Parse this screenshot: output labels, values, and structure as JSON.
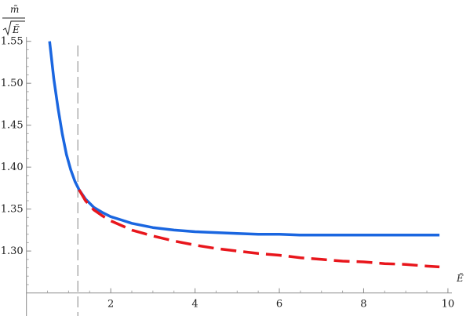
{
  "chart_data": {
    "type": "line",
    "xlim": [
      -0.05,
      10.3
    ],
    "ylim": [
      1.23,
      1.56
    ],
    "x_axis_at_y": 1.25,
    "y_axis_at_x": 0,
    "xticks": [
      2,
      4,
      6,
      8,
      10
    ],
    "xtick_labels": [
      "2",
      "4",
      "6",
      "8",
      "10"
    ],
    "yticks": [
      1.3,
      1.35,
      1.4,
      1.45,
      1.5,
      1.55
    ],
    "ytick_labels": [
      "1.30",
      "1.35",
      "1.40",
      "1.45",
      "1.50",
      "1.55"
    ],
    "xlabel": "Ẽ",
    "ylabel_numerator": "m̃",
    "ylabel_denominator": "Ẽ",
    "vertical_line": {
      "x": 1.22,
      "style": "dashed",
      "color": "#999999"
    },
    "grid": false,
    "series": [
      {
        "color": "#1a66e0",
        "style": "solid",
        "x": [
          0.55,
          0.65,
          0.75,
          0.85,
          0.95,
          1.05,
          1.15,
          1.25,
          1.4,
          1.6,
          1.8,
          2.0,
          2.25,
          2.5,
          3.0,
          3.5,
          4.0,
          4.5,
          5.0,
          5.5,
          6.0,
          6.5,
          7.0,
          7.5,
          8.0,
          8.5,
          9.0,
          9.5,
          9.8
        ],
        "y": [
          1.55,
          1.505,
          1.47,
          1.44,
          1.415,
          1.397,
          1.383,
          1.373,
          1.362,
          1.352,
          1.346,
          1.341,
          1.337,
          1.333,
          1.328,
          1.325,
          1.323,
          1.322,
          1.321,
          1.32,
          1.32,
          1.319,
          1.319,
          1.319,
          1.319,
          1.319,
          1.319,
          1.319,
          1.319
        ]
      },
      {
        "color": "#e8161c",
        "style": "dashed",
        "x": [
          1.25,
          1.4,
          1.6,
          1.8,
          2.0,
          2.5,
          3.0,
          3.5,
          4.0,
          4.5,
          5.0,
          5.5,
          6.0,
          6.5,
          7.0,
          7.5,
          8.0,
          8.5,
          9.0,
          9.5,
          9.8
        ],
        "y": [
          1.373,
          1.36,
          1.349,
          1.342,
          1.336,
          1.325,
          1.318,
          1.312,
          1.307,
          1.303,
          1.3,
          1.297,
          1.295,
          1.292,
          1.29,
          1.288,
          1.287,
          1.285,
          1.284,
          1.282,
          1.281
        ]
      }
    ]
  }
}
